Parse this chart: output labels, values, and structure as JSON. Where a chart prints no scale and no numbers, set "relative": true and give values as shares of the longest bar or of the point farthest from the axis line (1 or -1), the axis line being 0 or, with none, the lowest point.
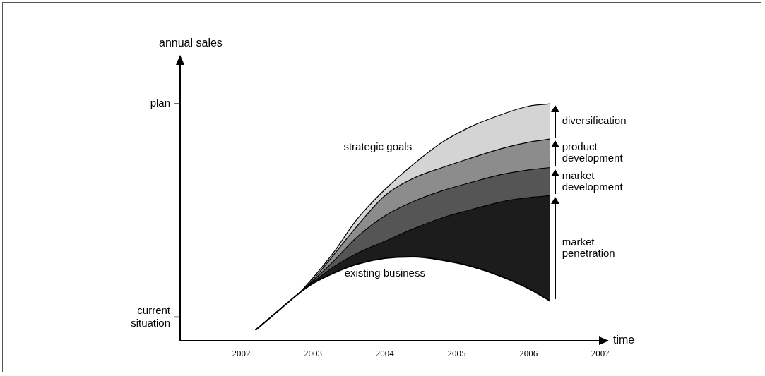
{
  "chart_data": {
    "type": "area",
    "stacked": true,
    "relative": true,
    "xlabel": "time",
    "ylabel": "annual sales",
    "marker": "none",
    "legend": "right",
    "x": [
      2002.2,
      2002.5,
      2002.8,
      2003.0,
      2003.3,
      2003.6,
      2004.0,
      2004.4,
      2004.8,
      2005.2,
      2005.6,
      2006.0,
      2006.3
    ],
    "xlim": [
      2001.15,
      2007.1
    ],
    "xticks": [
      2002,
      2003,
      2004,
      2005,
      2006,
      2007
    ],
    "ref_lines": [
      {
        "axis": "y",
        "value": 0.1,
        "label": "current situation"
      },
      {
        "axis": "y",
        "value": 1,
        "label": "plan"
      }
    ],
    "series": [
      {
        "name": "existing business",
        "color": "#ffffff",
        "values": [
          0.045,
          0.122,
          0.199,
          0.242,
          0.287,
          0.322,
          0.348,
          0.354,
          0.34,
          0.314,
          0.274,
          0.221,
          0.168
        ]
      },
      {
        "name": "market penetration",
        "color": "#1c1c1c",
        "values": [
          0,
          0,
          0,
          0.005,
          0.027,
          0.045,
          0.072,
          0.119,
          0.179,
          0.239,
          0.311,
          0.383,
          0.444
        ]
      },
      {
        "name": "market development",
        "color": "#555555",
        "values": [
          0,
          0,
          0,
          0.006,
          0.026,
          0.067,
          0.107,
          0.115,
          0.114,
          0.115,
          0.115,
          0.117,
          0.119
        ]
      },
      {
        "name": "product development",
        "color": "#8c8c8c",
        "values": [
          0,
          0,
          0,
          0.005,
          0.027,
          0.045,
          0.085,
          0.098,
          0.098,
          0.103,
          0.109,
          0.117,
          0.12
        ]
      },
      {
        "name": "diversification",
        "color": "#d4d4d4",
        "values": [
          0,
          0,
          0,
          0.008,
          0.011,
          0.029,
          0.026,
          0.059,
          0.107,
          0.133,
          0.143,
          0.152,
          0.149
        ]
      }
    ],
    "annotations": [
      "strategic goals"
    ]
  }
}
